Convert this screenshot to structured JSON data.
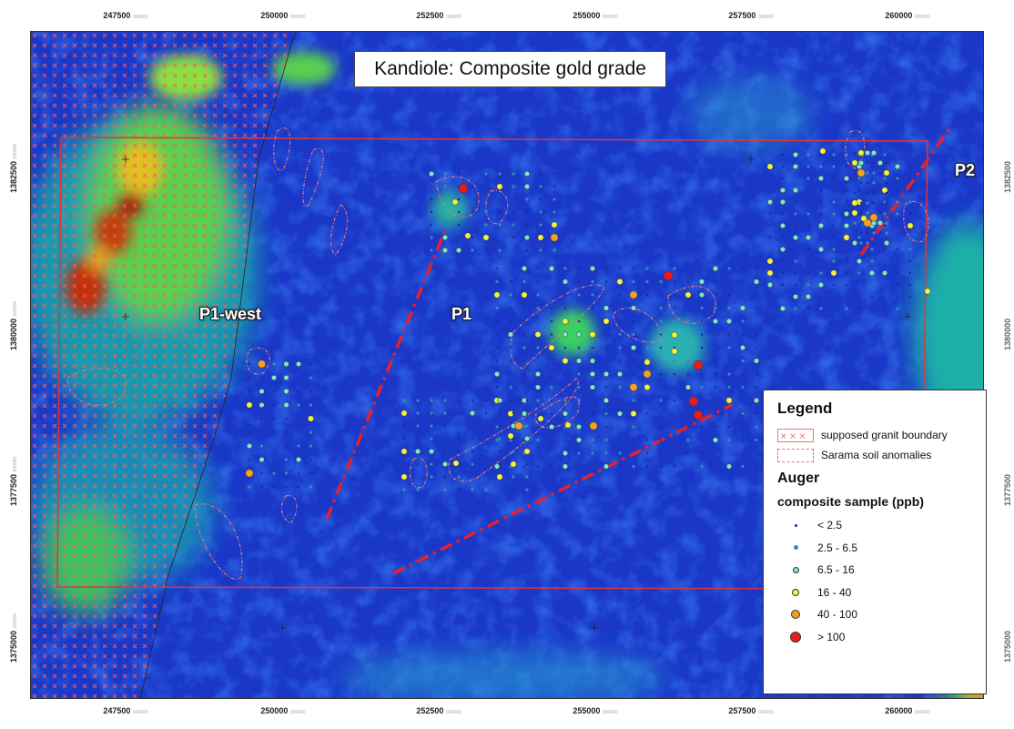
{
  "map": {
    "title": "Kandiole: Composite gold grade",
    "labels": [
      "P1-west",
      "P1",
      "P2"
    ],
    "x_ticks": [
      "247500",
      "250000",
      "252500",
      "255000",
      "257500",
      "260000"
    ],
    "x_ticks_suffix": "000000",
    "y_ticks": [
      "1382500",
      "1380000",
      "1377500",
      "1375000"
    ],
    "y_ticks_suffix": "000000",
    "colors": {
      "frame": "#e0343a",
      "fault": "#e8202a",
      "anomaly": "#e07878",
      "granite_x": "#ff5a5a"
    }
  },
  "legend": {
    "title": "Legend",
    "items": [
      {
        "label": "supposed granit boundary",
        "swatch": "granite"
      },
      {
        "label": "Sarama soil anomalies",
        "swatch": "anomaly"
      }
    ],
    "section": "Auger",
    "subtitle": "composite sample (ppb)",
    "classes": [
      {
        "label": "< 2.5",
        "color": "#1a2a9a"
      },
      {
        "label": "2.5 - 6.5",
        "color": "#3a8ab0"
      },
      {
        "label": "6.5 - 16",
        "color": "#7fe8c8"
      },
      {
        "label": "16 - 40",
        "color": "#f4f43c"
      },
      {
        "label": "40 - 100",
        "color": "#f4a020"
      },
      {
        "label": "> 100",
        "color": "#e81c1c"
      }
    ]
  }
}
